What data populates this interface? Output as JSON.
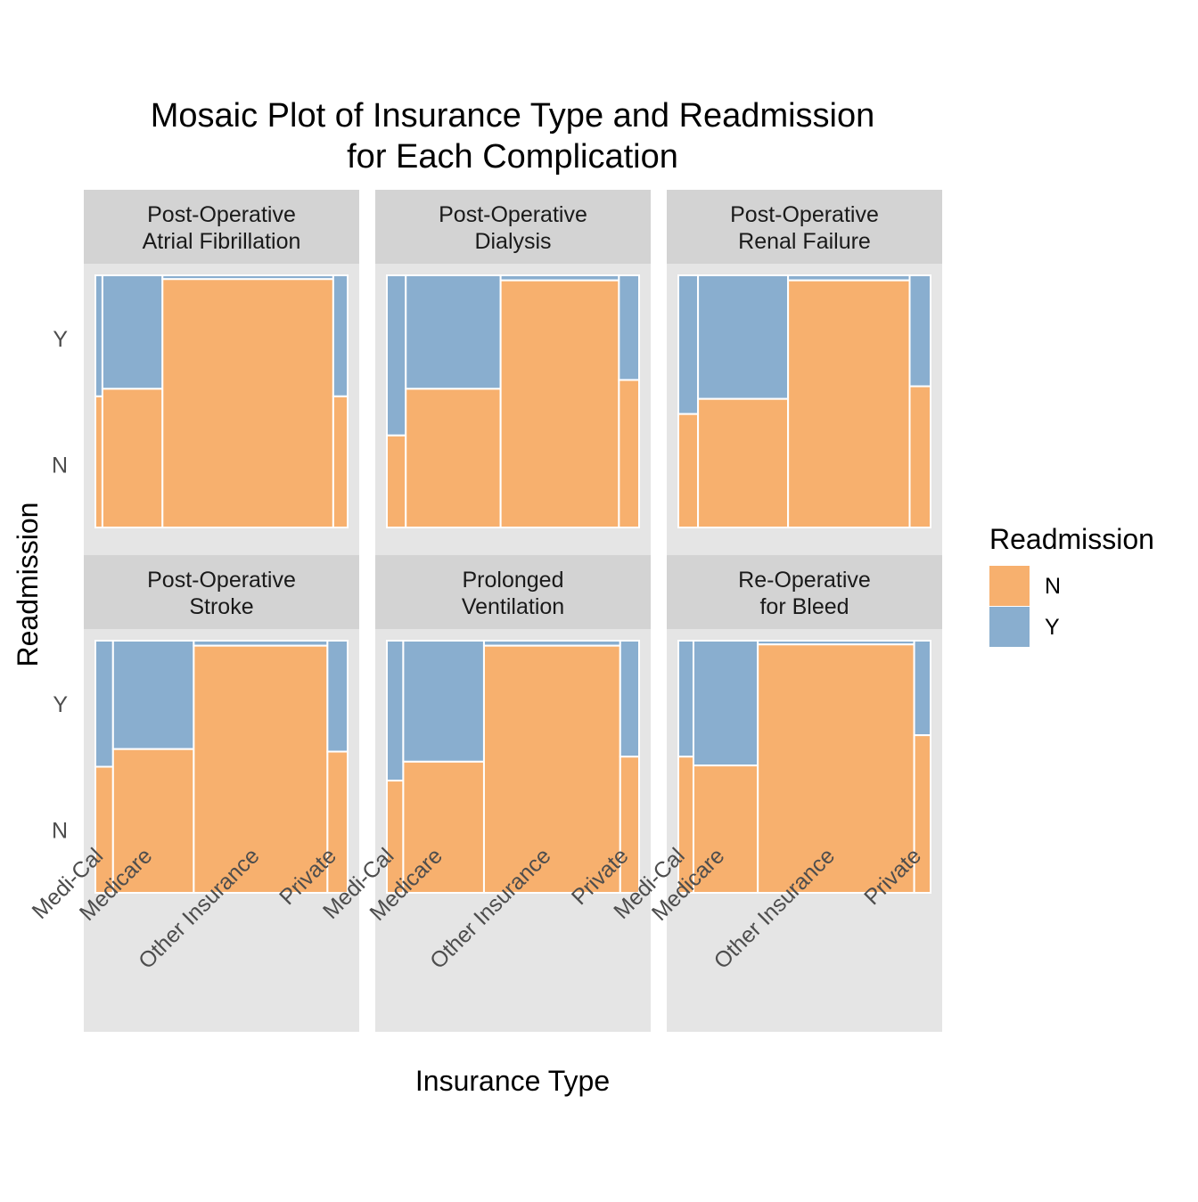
{
  "chart_data": {
    "type": "mosaic",
    "title_lines": [
      "Mosaic Plot of Insurance Type and Readmission",
      "for Each Complication"
    ],
    "xlabel": "Insurance Type",
    "ylabel": "Readmission",
    "y_tick_labels": [
      "N",
      "Y"
    ],
    "x_categories": [
      "Medi-Cal",
      "Medicare",
      "Other Insurance",
      "Private"
    ],
    "legend": {
      "title": "Readmission",
      "placement": "right",
      "items": [
        {
          "label": "N",
          "color": "#F7B06E"
        },
        {
          "label": "Y",
          "color": "#89AECF"
        }
      ]
    },
    "colors": {
      "N": "#F7B06E",
      "Y": "#89AECF",
      "panel_bg": "#E5E5E5",
      "strip_bg": "#D3D3D3"
    },
    "panels": [
      {
        "strip": [
          "Post-Operative",
          "Atrial Fibrillation"
        ],
        "insurance_share": {
          "Medi-Cal": 0.028,
          "Medicare": 0.238,
          "Other Insurance": 0.677,
          "Private": 0.057
        },
        "readmission_rate_Y": {
          "Medi-Cal": 0.48,
          "Medicare": 0.45,
          "Other Insurance": 0.015,
          "Private": 0.48
        }
      },
      {
        "strip": [
          "Post-Operative",
          "Dialysis"
        ],
        "insurance_share": {
          "Medi-Cal": 0.075,
          "Medicare": 0.376,
          "Other Insurance": 0.469,
          "Private": 0.08
        },
        "readmission_rate_Y": {
          "Medi-Cal": 0.635,
          "Medicare": 0.45,
          "Other Insurance": 0.02,
          "Private": 0.415
        }
      },
      {
        "strip": [
          "Post-Operative",
          "Renal Failure"
        ],
        "insurance_share": {
          "Medi-Cal": 0.078,
          "Medicare": 0.357,
          "Other Insurance": 0.482,
          "Private": 0.083
        },
        "readmission_rate_Y": {
          "Medi-Cal": 0.55,
          "Medicare": 0.49,
          "Other Insurance": 0.02,
          "Private": 0.44
        }
      },
      {
        "strip": [
          "Post-Operative",
          "Stroke"
        ],
        "insurance_share": {
          "Medi-Cal": 0.07,
          "Medicare": 0.32,
          "Other Insurance": 0.53,
          "Private": 0.08
        },
        "readmission_rate_Y": {
          "Medi-Cal": 0.5,
          "Medicare": 0.43,
          "Other Insurance": 0.02,
          "Private": 0.44
        }
      },
      {
        "strip": [
          "Prolonged",
          "Ventilation"
        ],
        "insurance_share": {
          "Medi-Cal": 0.065,
          "Medicare": 0.32,
          "Other Insurance": 0.54,
          "Private": 0.075
        },
        "readmission_rate_Y": {
          "Medi-Cal": 0.555,
          "Medicare": 0.48,
          "Other Insurance": 0.02,
          "Private": 0.46
        }
      },
      {
        "strip": [
          "Re-Operative",
          "for Bleed"
        ],
        "insurance_share": {
          "Medi-Cal": 0.06,
          "Medicare": 0.255,
          "Other Insurance": 0.62,
          "Private": 0.065
        },
        "readmission_rate_Y": {
          "Medi-Cal": 0.46,
          "Medicare": 0.495,
          "Other Insurance": 0.015,
          "Private": 0.375
        }
      }
    ]
  }
}
